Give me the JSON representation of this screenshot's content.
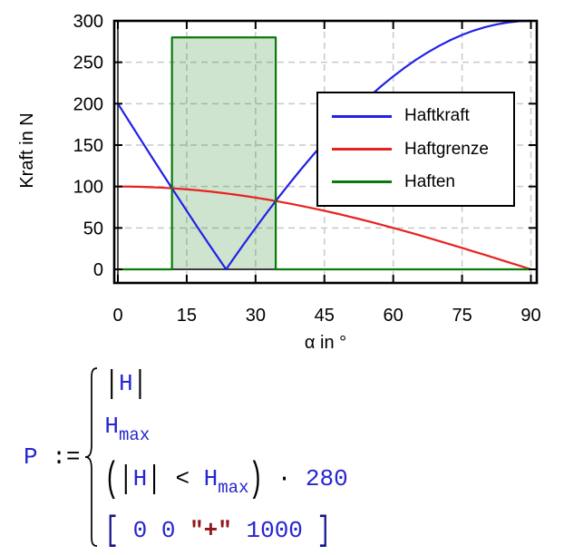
{
  "chart": {
    "y_axis_title": "Kraft in N",
    "x_axis_title": "α in °",
    "y_ticks": [
      0,
      50,
      100,
      150,
      200,
      250,
      300
    ],
    "x_ticks": [
      0,
      15,
      30,
      45,
      60,
      75,
      90
    ],
    "grid_color": "#c9c9c9",
    "frame_color": "#000000",
    "legend": {
      "entries": [
        {
          "label": "Haftkraft",
          "color": "#2121e8"
        },
        {
          "label": "Haftgrenze",
          "color": "#e82121"
        },
        {
          "label": "Haften",
          "color": "#0a7a0a"
        }
      ]
    }
  },
  "chart_data": {
    "type": "line",
    "title": "",
    "xlabel": "α in °",
    "ylabel": "Kraft in N",
    "xlim": [
      -0.8,
      91.2
    ],
    "ylim": [
      -16,
      300
    ],
    "grid": true,
    "legend_position": "inside upper right",
    "series": [
      {
        "name": "Haftkraft",
        "color": "#2121e8",
        "description": "|H| with H = 500·sin(α) − 200, zero at α ≈ 23.6°",
        "x": [
          0,
          2.5,
          5,
          7.5,
          10,
          12.5,
          15,
          17.5,
          20,
          22.5,
          23.578,
          25,
          27.5,
          30,
          32.5,
          35,
          37.5,
          40,
          42.5,
          45,
          47.5,
          50,
          52.5,
          55,
          57.5,
          60,
          62.5,
          65,
          67.5,
          70,
          72.5,
          75,
          77.5,
          80,
          82.5,
          85,
          87.5,
          90
        ],
        "y": [
          200,
          178.2,
          156.4,
          134.7,
          113.2,
          91.8,
          70.6,
          49.6,
          29,
          8.7,
          0,
          11.3,
          30.9,
          50,
          68.7,
          86.8,
          104.4,
          121.4,
          137.8,
          153.6,
          168.6,
          183,
          196.7,
          209.6,
          221.7,
          233,
          243.5,
          253.2,
          261.9,
          269.8,
          276.9,
          283,
          288.2,
          292.4,
          295.7,
          298.1,
          299.5,
          300
        ]
      },
      {
        "name": "Haftgrenze",
        "color": "#e82121",
        "description": "H_max = 100·cos(α)",
        "x": [
          0,
          2.5,
          5,
          7.5,
          10,
          12.5,
          15,
          17.5,
          20,
          22.5,
          25,
          27.5,
          30,
          32.5,
          35,
          37.5,
          40,
          42.5,
          45,
          47.5,
          50,
          52.5,
          55,
          57.5,
          60,
          62.5,
          65,
          67.5,
          70,
          72.5,
          75,
          77.5,
          80,
          82.5,
          85,
          87.5,
          90
        ],
        "y": [
          100,
          99.9,
          99.6,
          99.1,
          98.5,
          97.6,
          96.6,
          95.4,
          94,
          92.4,
          90.6,
          88.7,
          86.6,
          84.3,
          81.9,
          79.3,
          76.6,
          73.7,
          70.7,
          67.6,
          64.3,
          60.9,
          57.4,
          53.7,
          50,
          46.2,
          42.3,
          38.3,
          34.2,
          30.1,
          25.9,
          21.6,
          17.4,
          13.1,
          8.7,
          4.4,
          0
        ]
      },
      {
        "name": "Haften",
        "color": "#0a7a0a",
        "fill": "rgba(10,122,10,0.2)",
        "description": "(|H| < H_max)·280 — rectangle between α ≈ 11.8° and α ≈ 34.4°",
        "x": [
          0,
          11.785,
          11.785,
          34.4,
          34.4,
          90
        ],
        "y": [
          0,
          0,
          280,
          280,
          0,
          0
        ]
      }
    ]
  },
  "formula": {
    "lhs": "P",
    "assign": ":=",
    "rows": [
      [
        {
          "t": "|",
          "c": "bar"
        },
        {
          "t": "H",
          "c": "var"
        },
        {
          "t": "|",
          "c": "bar"
        }
      ],
      [
        {
          "t": "H",
          "c": "var"
        },
        {
          "t": "max",
          "c": "varsub"
        }
      ],
      [
        {
          "t": "(",
          "c": "big"
        },
        {
          "t": "|",
          "c": "bar"
        },
        {
          "t": "H",
          "c": "var"
        },
        {
          "t": "|",
          "c": "bar"
        },
        {
          "t": " < ",
          "c": "op"
        },
        {
          "t": "H",
          "c": "var"
        },
        {
          "t": "max",
          "c": "varsub"
        },
        {
          "t": ")",
          "c": "big"
        },
        {
          "t": " · ",
          "c": "op"
        },
        {
          "t": "280",
          "c": "var"
        }
      ],
      [
        {
          "t": "[",
          "c": "bracket"
        },
        {
          "t": " ",
          "c": "op"
        },
        {
          "t": "0",
          "c": "var"
        },
        {
          "t": " ",
          "c": "op"
        },
        {
          "t": "0",
          "c": "var"
        },
        {
          "t": " ",
          "c": "op"
        },
        {
          "t": "\"+\"",
          "c": "str"
        },
        {
          "t": " ",
          "c": "op"
        },
        {
          "t": "1000",
          "c": "var"
        },
        {
          "t": " ",
          "c": "op"
        },
        {
          "t": "]",
          "c": "bracket"
        }
      ]
    ]
  }
}
